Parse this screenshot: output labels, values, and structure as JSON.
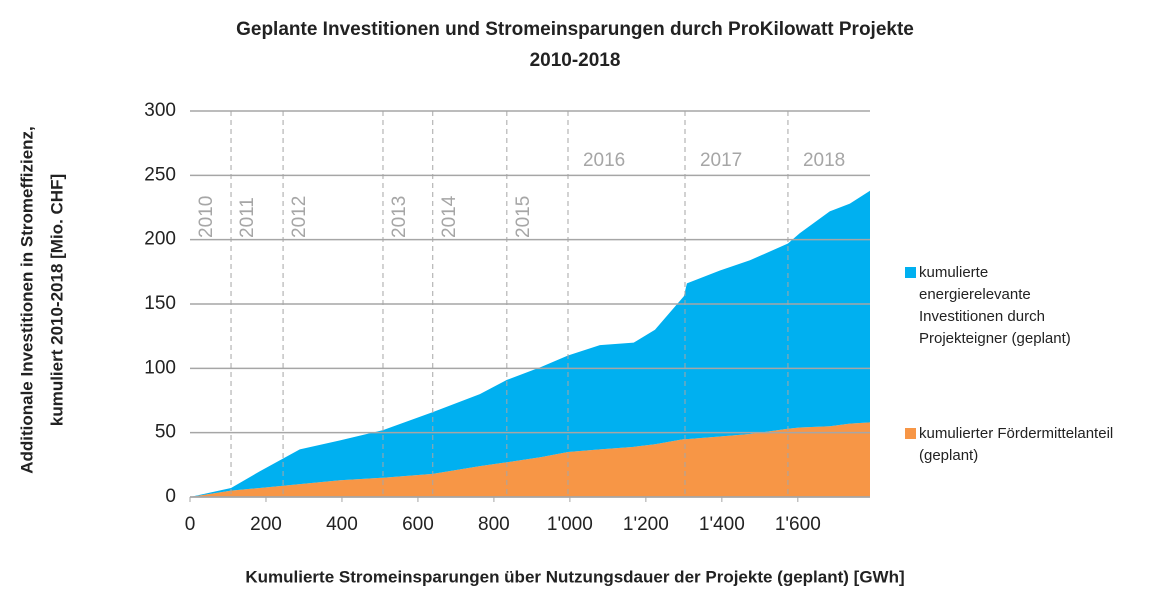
{
  "chart_data": {
    "type": "area",
    "title": [
      "Geplante Investitionen und Stromeinsparungen durch ProKilowatt Projekte",
      "2010-2018"
    ],
    "x_label": "Kumulierte Stromeinsparungen über Nutzungsdauer der Projekte  (geplant) [GWh]",
    "y_label": [
      "Additionale Investitionen in Stromeffizienz,",
      "kumuliert 2010-2018 [Mio. CHF]"
    ],
    "x": [
      0,
      108,
      184,
      289,
      395,
      508,
      639,
      763,
      834,
      924,
      995,
      1079,
      1168,
      1224,
      1300,
      1308,
      1395,
      1474,
      1574,
      1605,
      1684,
      1737,
      1790
    ],
    "series": [
      {
        "name": "kumulierte energierelevante Investitionen durch Projekteigner (geplant)",
        "color": "#00b0f0",
        "values": [
          0,
          2,
          13,
          27,
          31,
          37,
          48,
          56,
          64,
          70,
          75,
          81,
          81,
          89,
          111,
          121,
          129,
          135,
          144,
          151,
          167,
          171,
          180
        ]
      },
      {
        "name": "kumulierter Fördermittelanteil (geplant)",
        "color": "#f79646",
        "values": [
          0,
          5,
          7,
          10,
          13,
          15,
          18,
          24,
          27,
          31,
          35,
          37,
          39,
          41,
          45,
          45,
          47,
          49,
          53,
          54,
          55,
          57,
          58
        ]
      }
    ],
    "stacked": true,
    "xlim": [
      0,
      1790
    ],
    "ylim": [
      0,
      300
    ],
    "xticks": [
      0,
      200,
      400,
      600,
      800,
      {
        "value": 1000,
        "label": "1'000"
      },
      {
        "value": 1200,
        "label": "1'200"
      },
      {
        "value": 1400,
        "label": "1'400"
      },
      {
        "value": 1600,
        "label": "1'600"
      }
    ],
    "yticks": [
      0,
      50,
      100,
      150,
      200,
      250,
      300
    ],
    "grid": true,
    "year_boundaries": [
      108,
      245,
      508,
      639,
      834,
      995,
      1303,
      1574
    ],
    "year_labels": [
      "2010",
      "2011",
      "2012",
      "2013",
      "2014",
      "2015",
      "2016",
      "2017",
      "2018"
    ],
    "legend": "right"
  }
}
